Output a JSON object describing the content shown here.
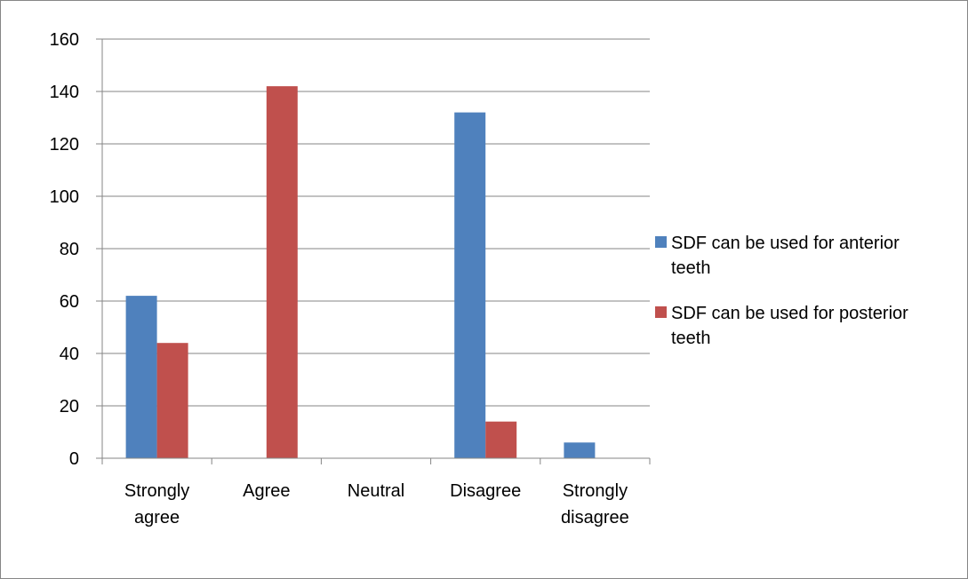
{
  "chart_data": {
    "type": "bar",
    "title": "",
    "xlabel": "",
    "ylabel": "",
    "categories": [
      [
        "Strongly",
        "agree"
      ],
      [
        "Agree"
      ],
      [
        "Neutral"
      ],
      [
        "Disagree"
      ],
      [
        "Strongly",
        "disagree"
      ]
    ],
    "ylim": [
      0,
      160
    ],
    "yticks": [
      0,
      20,
      40,
      60,
      80,
      100,
      120,
      140,
      160
    ],
    "grid": true,
    "legend_position": "right",
    "series": [
      {
        "name": "SDF can be used for anterior teeth",
        "legend_lines": [
          "SDF can be used for anterior",
          "teeth"
        ],
        "color": "#4F81BD",
        "values": [
          62,
          0,
          0,
          132,
          6
        ]
      },
      {
        "name": "SDF can be used for posterior teeth",
        "legend_lines": [
          "SDF can be used for posterior",
          "teeth"
        ],
        "color": "#C0504D",
        "values": [
          44,
          142,
          0,
          14,
          0
        ]
      }
    ]
  }
}
